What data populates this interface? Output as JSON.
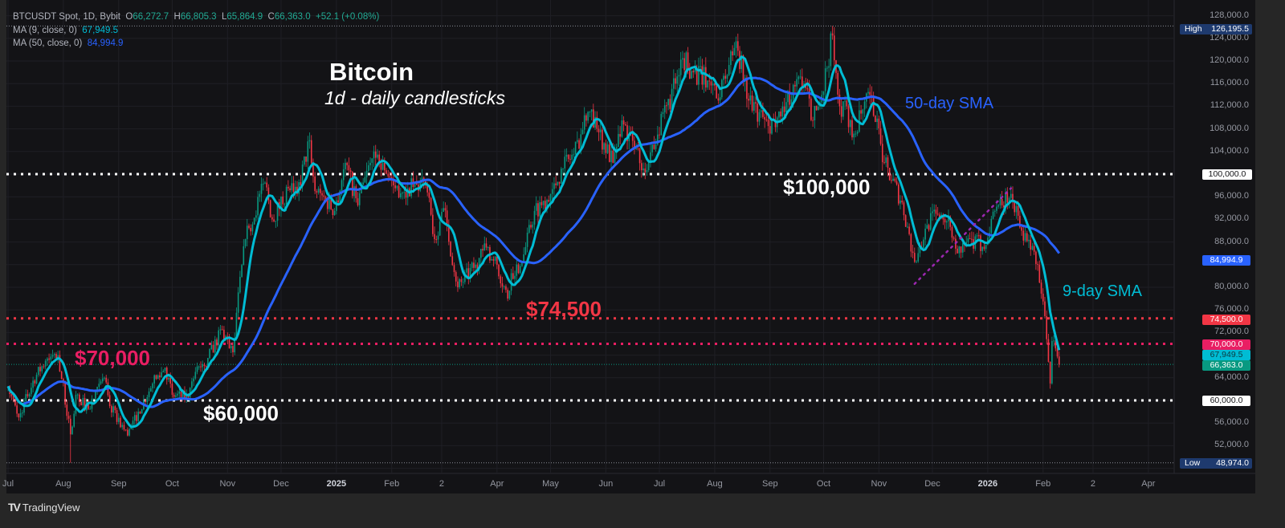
{
  "legend": {
    "symbol": "BTCUSDT Spot, 1D, Bybit",
    "open_label": "O",
    "open": "66,272.7",
    "high_label": "H",
    "high": "66,805.3",
    "low_label": "L",
    "low": "65,864.9",
    "close_label": "C",
    "close": "66,363.0",
    "change": "+52.1 (+0.08%)",
    "ma9_label": "MA (9, close, 0)",
    "ma9_value": "67,949.5",
    "ma50_label": "MA (50, close, 0)",
    "ma50_value": "84,994.9"
  },
  "annotations": {
    "title": "Bitcoin",
    "subtitle": "1d - daily candlesticks",
    "level_100k": "$100,000",
    "level_74500": "$74,500",
    "level_70k": "$70,000",
    "level_60k": "$60,000",
    "sma50_label": "50-day SMA",
    "sma9_label": "9-day SMA"
  },
  "price_axis": {
    "ticks": [
      "128,000.0",
      "124,000.0",
      "120,000.0",
      "116,000.0",
      "112,000.0",
      "108,000.0",
      "104,000.0",
      "96,000.0",
      "92,000.0",
      "88,000.0",
      "80,000.0",
      "76,000.0",
      "72,000.0",
      "64,000.0",
      "56,000.0",
      "52,000.0"
    ],
    "badges": {
      "high_label": "High",
      "high_value": "126,195.5",
      "low_label": "Low",
      "low_value": "48,974.0",
      "level_100k": "100,000.0",
      "ma50": "84,994.9",
      "level_74500": "74,500.0",
      "level_70k": "70,000.0",
      "ma9": "67,949.5",
      "last": "66,363.0",
      "level_60k": "60,000.0"
    }
  },
  "time_axis": {
    "ticks": [
      {
        "label": "Jul",
        "date": "2024-07-01"
      },
      {
        "label": "Aug",
        "date": "2024-08-01"
      },
      {
        "label": "Sep",
        "date": "2024-09-01"
      },
      {
        "label": "Oct",
        "date": "2024-10-01"
      },
      {
        "label": "Nov",
        "date": "2024-11-01"
      },
      {
        "label": "Dec",
        "date": "2024-12-01"
      },
      {
        "label": "2025",
        "date": "2025-01-01",
        "year": true
      },
      {
        "label": "Feb",
        "date": "2025-02-01"
      },
      {
        "label": "2",
        "date": "2025-03-01"
      },
      {
        "label": "Apr",
        "date": "2025-04-01"
      },
      {
        "label": "May",
        "date": "2025-05-01"
      },
      {
        "label": "Jun",
        "date": "2025-06-01"
      },
      {
        "label": "Jul",
        "date": "2025-07-01"
      },
      {
        "label": "Aug",
        "date": "2025-08-01"
      },
      {
        "label": "Sep",
        "date": "2025-09-01"
      },
      {
        "label": "Oct",
        "date": "2025-10-01"
      },
      {
        "label": "Nov",
        "date": "2025-11-01"
      },
      {
        "label": "Dec",
        "date": "2025-12-01"
      },
      {
        "label": "2026",
        "date": "2026-01-01",
        "year": true
      },
      {
        "label": "Feb",
        "date": "2026-02-01"
      },
      {
        "label": "2",
        "date": "2026-03-01"
      },
      {
        "label": "Apr",
        "date": "2026-04-01"
      }
    ]
  },
  "footer": {
    "brand": "TradingView"
  },
  "colors": {
    "up": "#089981",
    "down": "#f23645",
    "ma9": "#00bcd4",
    "ma50": "#2962ff",
    "level_white": "#ffffff",
    "level_74500": "#f23645",
    "level_70k": "#e91e63",
    "trendline": "#9c27b0",
    "background": "#131316"
  },
  "chart_data": {
    "type": "candlestick",
    "symbol": "BTCUSDT",
    "interval": "1D",
    "ylim": [
      46000,
      129000
    ],
    "xlim": [
      "2024-07-01",
      "2026-04-20"
    ],
    "grid": true,
    "y_scale": "linear",
    "indicators": [
      {
        "name": "MA (9, close, 0)",
        "period": 9,
        "last": 67949.5
      },
      {
        "name": "MA (50, close, 0)",
        "period": 50,
        "last": 84994.9
      }
    ],
    "horizontal_levels": [
      100000,
      74500,
      70000,
      60000
    ],
    "period_high": {
      "date": "2025-10-06",
      "value": 126195.5
    },
    "period_low": {
      "date": "2024-08-05",
      "value": 48974.0
    },
    "trendline": {
      "from": {
        "date": "2025-11-21",
        "value": 80600
      },
      "to": {
        "date": "2026-01-14",
        "value": 97500
      }
    },
    "approx_closes": [
      [
        "2024-07-01",
        62500
      ],
      [
        "2024-07-07",
        57000
      ],
      [
        "2024-07-15",
        63500
      ],
      [
        "2024-07-22",
        67000
      ],
      [
        "2024-07-29",
        68000
      ],
      [
        "2024-08-05",
        54000
      ],
      [
        "2024-08-08",
        61000
      ],
      [
        "2024-08-15",
        58500
      ],
      [
        "2024-08-24",
        64000
      ],
      [
        "2024-08-27",
        59000
      ],
      [
        "2024-09-06",
        53800
      ],
      [
        "2024-09-12",
        58000
      ],
      [
        "2024-09-20",
        63000
      ],
      [
        "2024-09-27",
        65800
      ],
      [
        "2024-10-01",
        61000
      ],
      [
        "2024-10-10",
        60500
      ],
      [
        "2024-10-15",
        66000
      ],
      [
        "2024-10-21",
        67500
      ],
      [
        "2024-10-29",
        72500
      ],
      [
        "2024-11-04",
        68500
      ],
      [
        "2024-11-06",
        75500
      ],
      [
        "2024-11-11",
        88500
      ],
      [
        "2024-11-13",
        90500
      ],
      [
        "2024-11-22",
        98500
      ],
      [
        "2024-11-26",
        92000
      ],
      [
        "2024-12-05",
        97500
      ],
      [
        "2024-12-10",
        96500
      ],
      [
        "2024-12-17",
        106000
      ],
      [
        "2024-12-20",
        97000
      ],
      [
        "2024-12-26",
        95500
      ],
      [
        "2024-12-31",
        93500
      ],
      [
        "2025-01-06",
        102000
      ],
      [
        "2025-01-13",
        94500
      ],
      [
        "2025-01-20",
        102000
      ],
      [
        "2025-01-22",
        104000
      ],
      [
        "2025-01-27",
        102000
      ],
      [
        "2025-02-03",
        97500
      ],
      [
        "2025-02-10",
        97500
      ],
      [
        "2025-02-20",
        98000
      ],
      [
        "2025-02-25",
        88500
      ],
      [
        "2025-03-02",
        94000
      ],
      [
        "2025-03-10",
        80000
      ],
      [
        "2025-03-20",
        84000
      ],
      [
        "2025-03-26",
        87000
      ],
      [
        "2025-04-01",
        84000
      ],
      [
        "2025-04-07",
        78000
      ],
      [
        "2025-04-09",
        82500
      ],
      [
        "2025-04-15",
        84500
      ],
      [
        "2025-04-22",
        93500
      ],
      [
        "2025-05-01",
        96500
      ],
      [
        "2025-05-08",
        101000
      ],
      [
        "2025-05-14",
        103500
      ],
      [
        "2025-05-22",
        111000
      ],
      [
        "2025-05-27",
        108000
      ],
      [
        "2025-06-05",
        102000
      ],
      [
        "2025-06-10",
        109500
      ],
      [
        "2025-06-17",
        104500
      ],
      [
        "2025-06-22",
        101000
      ],
      [
        "2025-06-30",
        107000
      ],
      [
        "2025-07-10",
        116000
      ],
      [
        "2025-07-14",
        120500
      ],
      [
        "2025-07-20",
        118000
      ],
      [
        "2025-07-31",
        116000
      ],
      [
        "2025-08-03",
        113000
      ],
      [
        "2025-08-13",
        123500
      ],
      [
        "2025-08-20",
        113000
      ],
      [
        "2025-08-31",
        108500
      ],
      [
        "2025-09-05",
        110000
      ],
      [
        "2025-09-15",
        115500
      ],
      [
        "2025-09-20",
        116000
      ],
      [
        "2025-09-25",
        109500
      ],
      [
        "2025-09-30",
        114000
      ],
      [
        "2025-10-06",
        124500
      ],
      [
        "2025-10-10",
        112000
      ],
      [
        "2025-10-14",
        112000
      ],
      [
        "2025-10-17",
        106500
      ],
      [
        "2025-10-27",
        114000
      ],
      [
        "2025-11-04",
        102000
      ],
      [
        "2025-11-14",
        95000
      ],
      [
        "2025-11-21",
        84500
      ],
      [
        "2025-11-28",
        91000
      ],
      [
        "2025-12-03",
        93000
      ],
      [
        "2025-12-10",
        92500
      ],
      [
        "2025-12-15",
        86000
      ],
      [
        "2025-12-20",
        88000
      ],
      [
        "2025-12-31",
        87500
      ],
      [
        "2026-01-05",
        93500
      ],
      [
        "2026-01-14",
        96500
      ],
      [
        "2026-01-20",
        90000
      ],
      [
        "2026-01-29",
        84000
      ],
      [
        "2026-02-01",
        77500
      ],
      [
        "2026-02-05",
        63000
      ],
      [
        "2026-02-06",
        70500
      ],
      [
        "2026-02-10",
        66363
      ]
    ]
  }
}
